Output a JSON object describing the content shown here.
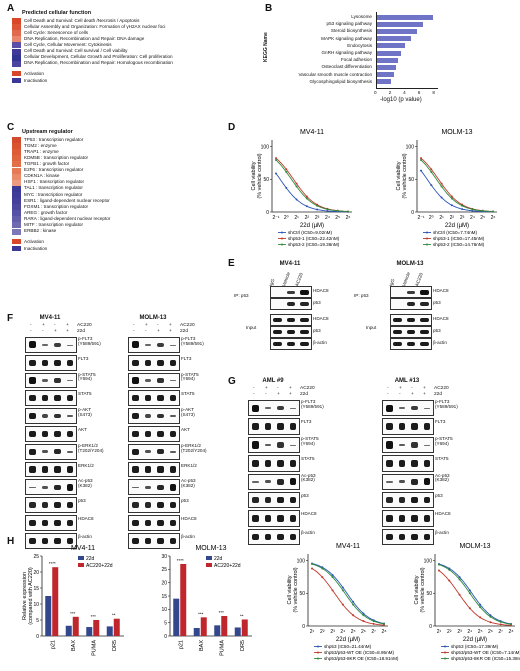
{
  "panels": [
    "A",
    "B",
    "C",
    "D",
    "E",
    "F",
    "G",
    "H",
    "I"
  ],
  "A": {
    "title": "Predicted cellular function",
    "items": [
      "Cell Death and Survival: Cell death /Necrosis / Apoptosis",
      "Cellular Assembly and Organization: Formation of γH2AX nuclear foci",
      "Cell Cycle: Senescence of cells",
      "DNA Replication, Recombination and Repair: DNA damage",
      "Cell Cycle, Cellular Movement: Cytokinesis",
      "Cell Death and Survival: Cell survival / Cell viability",
      "Cellular Development, Cellular Growth and Proliferation: Cell proliferation",
      "DNA Replication, Recombination and Repair: Homologous recombination"
    ],
    "item_colors": [
      "#d9472b",
      "#dd5537",
      "#e06a4d",
      "#e8866e",
      "#5b4fa8",
      "#3f3a98",
      "#2f3590",
      "#4a43a0"
    ],
    "legend": [
      "Activation",
      "Inactivation"
    ],
    "legend_colors": [
      "#d9472b",
      "#3b3898"
    ]
  },
  "B": {
    "axis_title": "KEGG Name",
    "chart_data": {
      "type": "bar",
      "orientation": "horizontal",
      "categories": [
        "Lysosome",
        "p53 signaling pathway",
        "Steroid biosynthesis",
        "MAPK signaling pathway",
        "Endocytosis",
        "GnRH signaling pathway",
        "Focal adhesion",
        "Osteoclast differentiation",
        "Vascular smooth muscle contraction",
        "Glycosphingolipid biosynthesis"
      ],
      "values": [
        7.8,
        6.4,
        5.6,
        4.8,
        4.0,
        3.4,
        3.0,
        2.8,
        2.4,
        2.0
      ],
      "xlabel": "-log10 (p value)",
      "xticks": [
        "0",
        "2",
        "4",
        "6",
        "8"
      ],
      "xlim": [
        0,
        8.5
      ],
      "color": "#6f74c6"
    }
  },
  "C": {
    "title": "Upstream regulator",
    "items": [
      "TP53 : transcription regulator",
      "TGM2 : enzyme",
      "TRAP1 : enzyme",
      "KDM5B : transcription regulator",
      "TGFB1 : growth factor",
      "E2F6 : transcription regulator",
      "CDKN1A : kinase",
      "HSF1 : transcription regulator",
      "TAL1 : transcription regulator",
      "MYC : transcription regulator",
      "ESR1 : ligand-dependent nuclear receptor",
      "FOXM1 : transcription regulator",
      "AREG : growth factor",
      "RARA : ligand-dependent nuclear receptor",
      "MITF : transcription regulator",
      "ERBB2 : kinase"
    ],
    "item_colors": [
      "#d44a2c",
      "#d9532f",
      "#dd5b37",
      "#e0653f",
      "#e36f49",
      "#e57a55",
      "#e98a68",
      "#ec9a80",
      "#3a3896",
      "#3e3b99",
      "#43409c",
      "#4b479f",
      "#5551a4",
      "#625ea9",
      "#6f6bb0",
      "#7c78b7"
    ],
    "legend": [
      "Activation",
      "Inactivation"
    ],
    "legend_colors": [
      "#d9472b",
      "#3b3898"
    ]
  },
  "D": {
    "chart_data": [
      {
        "type": "line",
        "title": "MV4-11",
        "xlabel": "22d (µM)",
        "ylabel": "Cell viability\n(% vehicle control)",
        "xscale": "log2",
        "xticks": [
          "2⁻¹",
          "2⁰",
          "2¹",
          "2²",
          "2³",
          "2⁴",
          "2⁵",
          "2⁶"
        ],
        "yticks": [
          "0",
          "50",
          "100"
        ],
        "ylim": [
          0,
          110
        ],
        "series": [
          {
            "name": "shCtrl (IC50=9.02nM)",
            "color": "#2b55b8",
            "ic50_log2": -0.6
          },
          {
            "name": "shp53-1 (IC50=22.42nM)",
            "color": "#c0392b",
            "ic50_log2": 0.7
          },
          {
            "name": "shp53-2 (IC50=19.36nM)",
            "color": "#2e8b3d",
            "ic50_log2": 0.5
          }
        ]
      },
      {
        "type": "line",
        "title": "MOLM-13",
        "xlabel": "22d (µM)",
        "ylabel": "Cell viability\n(% vehicle control)",
        "xscale": "log2",
        "xticks": [
          "2⁻¹",
          "2⁰",
          "2¹",
          "2²",
          "2³",
          "2⁴",
          "2⁵",
          "2⁶"
        ],
        "yticks": [
          "0",
          "50",
          "100"
        ],
        "ylim": [
          0,
          110
        ],
        "series": [
          {
            "name": "shCtrl (IC50=7.74nM)",
            "color": "#2b55b8",
            "ic50_log2": -0.4
          },
          {
            "name": "shp53-1 (IC50=17.45nM)",
            "color": "#c0392b",
            "ic50_log2": 0.7
          },
          {
            "name": "shp53-2 (IC50=14.76nM)",
            "color": "#2e8b3d",
            "ic50_log2": 0.5
          }
        ]
      }
    ]
  },
  "E": {
    "cell_lines": [
      "MV4-11",
      "MOLM-13"
    ],
    "lanes": [
      "IgG",
      "Vehicle",
      "AC220"
    ],
    "ip_label": "IP: p53",
    "input_label": "Input",
    "ip_rows": [
      "HDAC8",
      "p53"
    ],
    "input_rows": [
      "HDAC8",
      "p53",
      "β-actin"
    ]
  },
  "F": {
    "cell_lines": [
      "MV4-11",
      "MOLM-13"
    ],
    "conditions": [
      {
        "name": "AC220",
        "marks": [
          "-",
          "+",
          "-",
          "+"
        ]
      },
      {
        "name": "22d",
        "marks": [
          "-",
          "-",
          "+",
          "+"
        ]
      }
    ],
    "rows": [
      "p-FLT3\n(Y589/591)",
      "FLT3",
      "p-STAT5\n(Y694)",
      "STAT5",
      "p-AKT\n(S473)",
      "AKT",
      "p-ERK1/2\n(T202/Y204)",
      "ERK1/2",
      "Ac-p53\n(K382)",
      "p53",
      "HDAC8",
      "β-actin"
    ]
  },
  "G": {
    "patients": [
      "AML #9",
      "AML #13"
    ],
    "conditions": [
      {
        "name": "AC220",
        "marks": [
          "-",
          "+",
          "-",
          "+"
        ]
      },
      {
        "name": "22d",
        "marks": [
          "-",
          "-",
          "+",
          "+"
        ]
      }
    ],
    "rows": [
      "p-FLT3\n(Y589/591)",
      "FLT3",
      "p-STAT5\n(Y694)",
      "STAT5",
      "Ac-p53\n(K382)",
      "p53",
      "HDAC8",
      "β-actin"
    ]
  },
  "H": {
    "chart_data": [
      {
        "type": "bar",
        "title": "MV4-11",
        "ylabel": "Relative expression\n(compared with AC220)",
        "categories": [
          "p21",
          "BAX",
          "PUMA",
          "DR5"
        ],
        "yticks": [
          "0",
          "5",
          "10",
          "15",
          "20",
          "25"
        ],
        "ylim": [
          0,
          25
        ],
        "series": [
          {
            "name": "22d",
            "color": "#33478c",
            "values": [
              12.5,
              3.2,
              2.8,
              3.0
            ]
          },
          {
            "name": "AC220+22d",
            "color": "#c0272d",
            "values": [
              21.5,
              6.0,
              5.0,
              5.4
            ]
          }
        ],
        "stars": [
          "****",
          "***",
          "***",
          "**"
        ]
      },
      {
        "type": "bar",
        "title": "MOLM-13",
        "ylabel": "",
        "categories": [
          "p21",
          "BAX",
          "PUMA",
          "DR5"
        ],
        "yticks": [
          "0",
          "5",
          "10",
          "15",
          "20",
          "25",
          "30"
        ],
        "ylim": [
          0,
          30
        ],
        "series": [
          {
            "name": "22d",
            "color": "#33478c",
            "values": [
              14.0,
              3.0,
              4.0,
              3.2
            ]
          },
          {
            "name": "AC220+22d",
            "color": "#c0272d",
            "values": [
              27.0,
              7.0,
              7.5,
              6.2
            ]
          }
        ],
        "stars": [
          "****",
          "***",
          "***",
          "**"
        ]
      }
    ]
  },
  "I": {
    "chart_data": [
      {
        "type": "line",
        "title": "MV4-11",
        "xlabel": "22d (µM)",
        "ylabel": "Cell viability\n(% vehicle control)",
        "xscale": "log2",
        "xticks": [
          "2¹",
          "2²",
          "2³",
          "2⁴",
          "2⁵",
          "2⁶",
          "2⁷",
          "2⁸"
        ],
        "yticks": [
          "0",
          "50",
          "100"
        ],
        "ylim": [
          0,
          110
        ],
        "series": [
          {
            "name": "shp53 (IC50=21.44nM)",
            "color": "#2b55b8",
            "ic50_log2": 4.4
          },
          {
            "name": "shp53/p53-WT OE (IC50=8.95nM)",
            "color": "#c0392b",
            "ic50_log2": 3.2
          },
          {
            "name": "shp53/p53-8KR OE (IC50=18.91nM)",
            "color": "#2e8b3d",
            "ic50_log2": 4.2
          }
        ]
      },
      {
        "type": "line",
        "title": "MOLM-13",
        "xlabel": "22d (µM)",
        "ylabel": "Cell viability\n(% vehicle control)",
        "xscale": "log2",
        "xticks": [
          "2¹",
          "2²",
          "2³",
          "2⁴",
          "2⁵",
          "2⁶",
          "2⁷",
          "2⁸"
        ],
        "yticks": [
          "0",
          "50",
          "100"
        ],
        "ylim": [
          0,
          110
        ],
        "series": [
          {
            "name": "shp53 (IC50=17.39nM)",
            "color": "#2b55b8",
            "ic50_log2": 4.2
          },
          {
            "name": "shp53/p53-WT OE (IC50=7.14nM)",
            "color": "#c0392b",
            "ic50_log2": 2.9
          },
          {
            "name": "shp53/p53-8KR OE (IC50=15.38nM)",
            "color": "#2e8b3d",
            "ic50_log2": 4.0
          }
        ]
      }
    ]
  }
}
